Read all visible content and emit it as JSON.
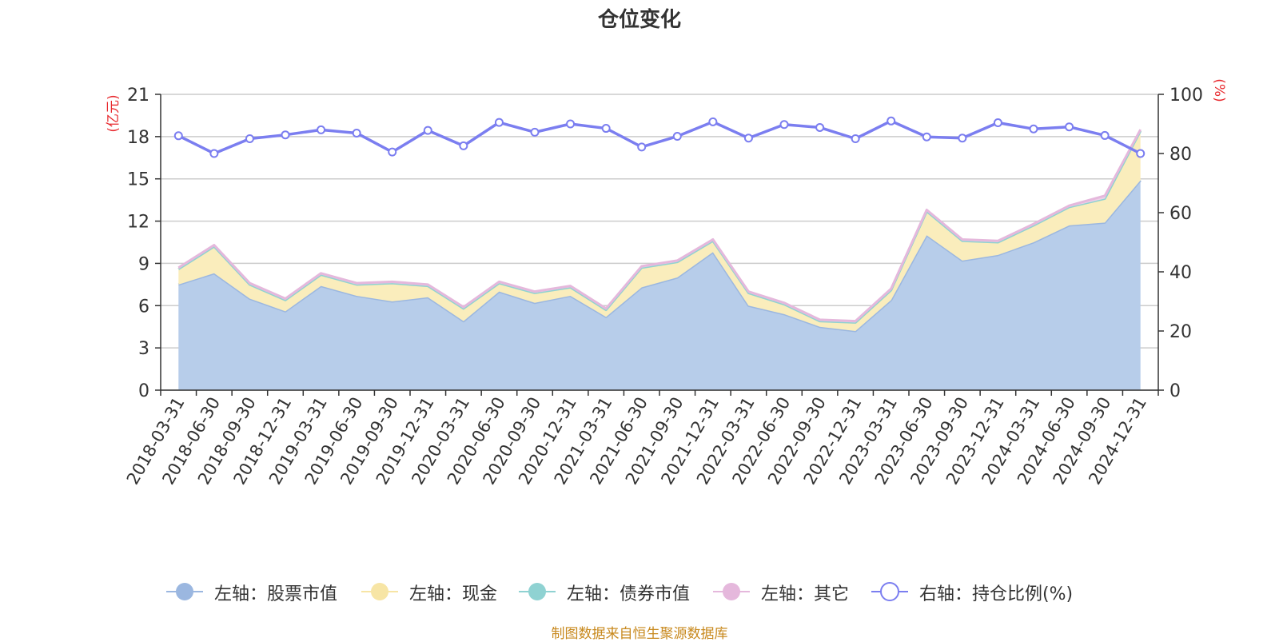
{
  "chart_data": {
    "type": "area",
    "title": "仓位变化",
    "left_axis_unit": "(亿元)",
    "right_axis_unit": "(%)",
    "left_ylim": [
      0,
      21
    ],
    "left_yticks": [
      0,
      3,
      6,
      9,
      12,
      15,
      18,
      21
    ],
    "right_ylim": [
      0,
      100
    ],
    "right_yticks": [
      0,
      20,
      40,
      60,
      80,
      100
    ],
    "categories": [
      "2018-03-31",
      "2018-06-30",
      "2018-09-30",
      "2018-12-31",
      "2019-03-31",
      "2019-06-30",
      "2019-09-30",
      "2019-12-31",
      "2020-03-31",
      "2020-06-30",
      "2020-09-30",
      "2020-12-31",
      "2021-03-31",
      "2021-06-30",
      "2021-09-30",
      "2021-12-31",
      "2022-03-31",
      "2022-06-30",
      "2022-09-30",
      "2022-12-31",
      "2023-03-31",
      "2023-06-30",
      "2023-09-30",
      "2023-12-31",
      "2024-03-31",
      "2024-06-30",
      "2024-09-30",
      "2024-12-31"
    ],
    "series": [
      {
        "name": "左轴：股票市值",
        "axis": "left",
        "kind": "stacked-area",
        "color": "#9bb7e0",
        "fill": "#b7cdea",
        "values": [
          7.5,
          8.3,
          6.5,
          5.6,
          7.4,
          6.7,
          6.3,
          6.6,
          4.9,
          7.0,
          6.2,
          6.7,
          5.2,
          7.3,
          8.0,
          9.8,
          6.0,
          5.4,
          4.5,
          4.2,
          6.4,
          11.0,
          9.2,
          9.6,
          10.5,
          11.7,
          11.9,
          14.9
        ]
      },
      {
        "name": "左轴：现金",
        "axis": "left",
        "kind": "stacked-area",
        "color": "#f7e5a5",
        "fill": "#faedbc",
        "values": [
          1.1,
          1.9,
          1.0,
          0.8,
          0.8,
          0.8,
          1.3,
          0.8,
          0.9,
          0.6,
          0.7,
          0.6,
          0.5,
          1.4,
          1.1,
          0.8,
          0.9,
          0.7,
          0.4,
          0.6,
          0.7,
          1.7,
          1.4,
          0.9,
          1.2,
          1.3,
          1.7,
          3.5
        ]
      },
      {
        "name": "左轴：债券市值",
        "axis": "left",
        "kind": "stacked-area",
        "color": "#8fd2d2",
        "fill": "#b4e2e2",
        "values": [
          0,
          0,
          0,
          0,
          0,
          0,
          0,
          0,
          0,
          0,
          0,
          0,
          0,
          0,
          0,
          0,
          0,
          0,
          0,
          0,
          0,
          0,
          0,
          0,
          0,
          0,
          0,
          0
        ]
      },
      {
        "name": "左轴：其它",
        "axis": "left",
        "kind": "stacked-area",
        "color": "#e5b8dc",
        "fill": "#efd0e8",
        "values": [
          0.1,
          0.1,
          0.1,
          0.1,
          0.1,
          0.1,
          0.1,
          0.1,
          0.1,
          0.1,
          0.1,
          0.1,
          0.1,
          0.1,
          0.1,
          0.1,
          0.1,
          0.1,
          0.1,
          0.1,
          0.1,
          0.1,
          0.1,
          0.1,
          0.1,
          0.1,
          0.2,
          0.1
        ]
      },
      {
        "name": "右轴：持仓比例(%)",
        "axis": "right",
        "kind": "line",
        "color": "#7b7ef0",
        "values": [
          86.0,
          80.0,
          85.0,
          86.3,
          88.0,
          86.9,
          80.5,
          87.8,
          82.6,
          90.5,
          87.2,
          90.0,
          88.5,
          82.2,
          85.8,
          90.7,
          85.2,
          89.8,
          88.8,
          85.0,
          91.0,
          85.6,
          85.2,
          90.4,
          88.3,
          89.0,
          86.1,
          80.0
        ]
      }
    ]
  },
  "source_text": "制图数据来自恒生聚源数据库"
}
